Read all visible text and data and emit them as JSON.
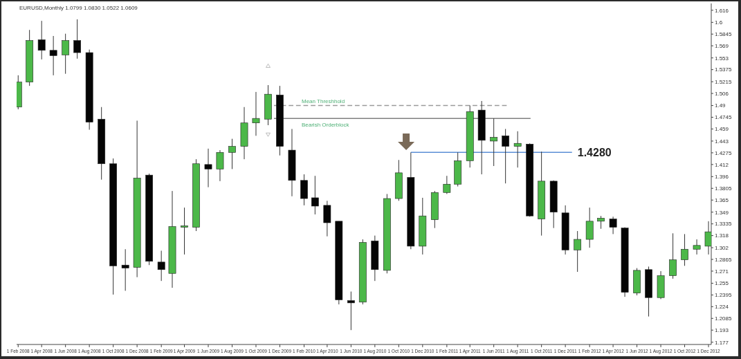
{
  "chart_data": {
    "type": "candlestick",
    "title": "EURUSD,Monthly  1.0799 1.0830 1.0522 1.0609",
    "x": [
      "2008-02",
      "2008-03",
      "2008-04",
      "2008-05",
      "2008-06",
      "2008-07",
      "2008-08",
      "2008-09",
      "2008-10",
      "2008-11",
      "2008-12",
      "2009-01",
      "2009-02",
      "2009-03",
      "2009-04",
      "2009-05",
      "2009-06",
      "2009-07",
      "2009-08",
      "2009-09",
      "2009-10",
      "2009-11",
      "2009-12",
      "2010-01",
      "2010-02",
      "2010-03",
      "2010-04",
      "2010-05",
      "2010-06",
      "2010-07",
      "2010-08",
      "2010-09",
      "2010-10",
      "2010-11",
      "2010-12",
      "2011-01",
      "2011-02",
      "2011-03",
      "2011-04",
      "2011-05",
      "2011-06",
      "2011-07",
      "2011-08",
      "2011-09",
      "2011-10",
      "2011-11",
      "2011-12",
      "2012-01",
      "2012-02",
      "2012-03",
      "2012-04",
      "2012-05",
      "2012-06",
      "2012-07",
      "2012-08",
      "2012-09",
      "2012-10",
      "2012-11",
      "2012-12"
    ],
    "ohlc": [
      [
        1.488,
        1.53,
        1.485,
        1.521
      ],
      [
        1.521,
        1.59,
        1.516,
        1.576
      ],
      [
        1.577,
        1.602,
        1.551,
        1.563
      ],
      [
        1.563,
        1.582,
        1.53,
        1.556
      ],
      [
        1.557,
        1.585,
        1.532,
        1.576
      ],
      [
        1.576,
        1.604,
        1.552,
        1.56
      ],
      [
        1.56,
        1.564,
        1.458,
        1.468
      ],
      [
        1.472,
        1.488,
        1.392,
        1.413
      ],
      [
        1.413,
        1.42,
        1.24,
        1.278
      ],
      [
        1.279,
        1.3,
        1.245,
        1.275
      ],
      [
        1.276,
        1.47,
        1.263,
        1.394
      ],
      [
        1.398,
        1.4,
        1.279,
        1.284
      ],
      [
        1.283,
        1.298,
        1.258,
        1.273
      ],
      [
        1.268,
        1.377,
        1.249,
        1.33
      ],
      [
        1.329,
        1.355,
        1.293,
        1.331
      ],
      [
        1.329,
        1.419,
        1.324,
        1.413
      ],
      [
        1.412,
        1.433,
        1.382,
        1.406
      ],
      [
        1.406,
        1.431,
        1.39,
        1.428
      ],
      [
        1.428,
        1.446,
        1.406,
        1.436
      ],
      [
        1.436,
        1.488,
        1.419,
        1.467
      ],
      [
        1.467,
        1.508,
        1.45,
        1.473
      ],
      [
        1.472,
        1.517,
        1.464,
        1.505
      ],
      [
        1.504,
        1.516,
        1.424,
        1.436
      ],
      [
        1.431,
        1.459,
        1.37,
        1.391
      ],
      [
        1.391,
        1.399,
        1.358,
        1.367
      ],
      [
        1.368,
        1.397,
        1.346,
        1.357
      ],
      [
        1.358,
        1.364,
        1.317,
        1.335
      ],
      [
        1.337,
        1.337,
        1.227,
        1.233
      ],
      [
        1.232,
        1.244,
        1.193,
        1.229
      ],
      [
        1.23,
        1.313,
        1.227,
        1.309
      ],
      [
        1.311,
        1.318,
        1.258,
        1.273
      ],
      [
        1.272,
        1.373,
        1.268,
        1.367
      ],
      [
        1.367,
        1.418,
        1.364,
        1.401
      ],
      [
        1.395,
        1.428,
        1.3,
        1.304
      ],
      [
        1.304,
        1.368,
        1.293,
        1.344
      ],
      [
        1.339,
        1.377,
        1.328,
        1.375
      ],
      [
        1.375,
        1.397,
        1.373,
        1.386
      ],
      [
        1.386,
        1.428,
        1.383,
        1.417
      ],
      [
        1.417,
        1.49,
        1.408,
        1.482
      ],
      [
        1.484,
        1.496,
        1.399,
        1.444
      ],
      [
        1.443,
        1.473,
        1.41,
        1.448
      ],
      [
        1.45,
        1.459,
        1.387,
        1.436
      ],
      [
        1.436,
        1.456,
        1.408,
        1.44
      ],
      [
        1.439,
        1.44,
        1.343,
        1.344
      ],
      [
        1.34,
        1.429,
        1.318,
        1.39
      ],
      [
        1.39,
        1.391,
        1.328,
        1.349
      ],
      [
        1.348,
        1.358,
        1.293,
        1.299
      ],
      [
        1.299,
        1.324,
        1.27,
        1.313
      ],
      [
        1.313,
        1.355,
        1.302,
        1.337
      ],
      [
        1.337,
        1.344,
        1.327,
        1.341
      ],
      [
        1.34,
        1.343,
        1.32,
        1.329
      ],
      [
        1.328,
        1.329,
        1.237,
        1.243
      ],
      [
        1.242,
        1.275,
        1.239,
        1.272
      ],
      [
        1.273,
        1.277,
        1.211,
        1.236
      ],
      [
        1.236,
        1.271,
        1.234,
        1.265
      ],
      [
        1.265,
        1.321,
        1.261,
        1.286
      ],
      [
        1.286,
        1.32,
        1.278,
        1.3
      ],
      [
        1.3,
        1.313,
        1.293,
        1.305
      ],
      [
        1.304,
        1.337,
        1.293,
        1.323
      ]
    ],
    "colors": [
      "#4cb849",
      "#4cb849",
      "#050505",
      "#050505",
      "#4cb849",
      "#050505",
      "#050505",
      "#050505",
      "#050505",
      "#050505",
      "#4cb849",
      "#050505",
      "#050505",
      "#4cb849",
      "#4cb849",
      "#4cb849",
      "#050505",
      "#4cb849",
      "#4cb849",
      "#4cb849",
      "#4cb849",
      "#4cb849",
      "#050505",
      "#050505",
      "#050505",
      "#050505",
      "#050505",
      "#050505",
      "#050505",
      "#4cb849",
      "#050505",
      "#4cb849",
      "#4cb849",
      "#050505",
      "#4cb849",
      "#4cb849",
      "#4cb849",
      "#4cb849",
      "#4cb849",
      "#050505",
      "#4cb849",
      "#050505",
      "#4cb849",
      "#050505",
      "#4cb849",
      "#050505",
      "#050505",
      "#4cb849",
      "#4cb849",
      "#4cb849",
      "#050505",
      "#050505",
      "#4cb849",
      "#050505",
      "#4cb849",
      "#4cb849",
      "#4cb849",
      "#4cb849",
      "#4cb849"
    ],
    "series": [
      {
        "type": "line",
        "name": "Mean Threshhold",
        "color": "#9a9a9a",
        "line_style": "dashed",
        "x": [
          "2009-11-16",
          "2011-07-04"
        ],
        "values": [
          1.49,
          1.49
        ]
      },
      {
        "type": "line",
        "name": "Bearish Orderblock",
        "color": "#7f7f7f",
        "line_style": "solid",
        "x": [
          "2009-11-16",
          "2011-09-03"
        ],
        "values": [
          1.473,
          1.473
        ]
      },
      {
        "type": "line",
        "color": "#5b8fd6",
        "line_style": "solid",
        "x": [
          "2010-11",
          "2011-12-18"
        ],
        "values": [
          1.428,
          1.428
        ]
      }
    ],
    "annotations": [
      "1.4280"
    ],
    "xlim": [
      "2008-01-28",
      "2012-12-08"
    ],
    "xticks": [
      {
        "value": "2008-02",
        "label": "1 Feb 2008"
      },
      {
        "value": "2008-04",
        "label": "1 Apr 2008"
      },
      {
        "value": "2008-06",
        "label": "1 Jun 2008"
      },
      {
        "value": "2008-08",
        "label": "1 Aug 2008"
      },
      {
        "value": "2008-10",
        "label": "1 Oct 2008"
      },
      {
        "value": "2008-12",
        "label": "1 Dec 2008"
      },
      {
        "value": "2009-02",
        "label": "1 Feb 2009"
      },
      {
        "value": "2009-04",
        "label": "1 Apr 2009"
      },
      {
        "value": "2009-06",
        "label": "1 Jun 2009"
      },
      {
        "value": "2009-08",
        "label": "1 Aug 2009"
      },
      {
        "value": "2009-10",
        "label": "1 Oct 2009"
      },
      {
        "value": "2009-12",
        "label": "1 Dec 2009"
      },
      {
        "value": "2010-02",
        "label": "1 Feb 2010"
      },
      {
        "value": "2010-04",
        "label": "1 Apr 2010"
      },
      {
        "value": "2010-06",
        "label": "1 Jun 2010"
      },
      {
        "value": "2010-08",
        "label": "1 Aug 2010"
      },
      {
        "value": "2010-10",
        "label": "1 Oct 2010"
      },
      {
        "value": "2010-12",
        "label": "1 Dec 2010"
      },
      {
        "value": "2011-02",
        "label": "1 Feb 2011"
      },
      {
        "value": "2011-04",
        "label": "1 Apr 2011"
      },
      {
        "value": "2011-06",
        "label": "1 Jun 2011"
      },
      {
        "value": "2011-08",
        "label": "1 Aug 2011"
      },
      {
        "value": "2011-10",
        "label": "1 Oct 2011"
      },
      {
        "value": "2011-12",
        "label": "1 Dec 2011"
      },
      {
        "value": "2012-02",
        "label": "1 Feb 2012"
      },
      {
        "value": "2012-04",
        "label": "1 Apr 2012"
      },
      {
        "value": "2012-06",
        "label": "1 Jun 2012"
      },
      {
        "value": "2012-08",
        "label": "1 Aug 2012"
      },
      {
        "value": "2012-10",
        "label": "1 Oct 2012"
      },
      {
        "value": "2012-12",
        "label": "1 Dec 2012"
      }
    ],
    "ylim": [
      1.174,
      1.625
    ],
    "yticks": [
      1.616,
      1.6,
      1.5845,
      1.569,
      1.553,
      1.5375,
      1.5215,
      1.506,
      1.49,
      1.4745,
      1.459,
      1.443,
      1.4275,
      1.412,
      1.396,
      1.3805,
      1.365,
      1.349,
      1.3335,
      1.318,
      1.302,
      1.2865,
      1.271,
      1.255,
      1.2395,
      1.224,
      1.2085,
      1.193,
      1.177
    ]
  }
}
